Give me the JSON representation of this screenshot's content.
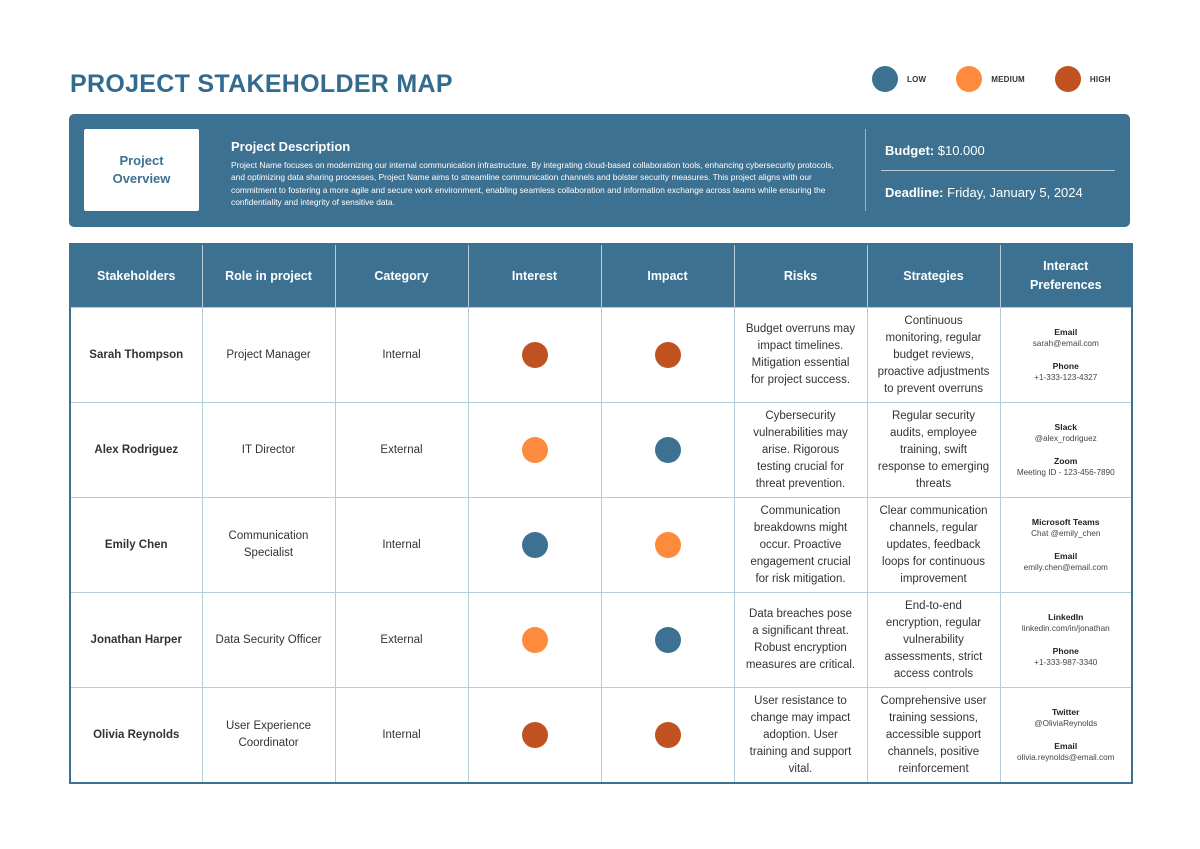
{
  "page": {
    "title": "PROJECT STAKEHOLDER MAP"
  },
  "legend": [
    {
      "label": "LOW",
      "level": "low",
      "color": "#3d7191"
    },
    {
      "label": "MEDIUM",
      "level": "medium",
      "color": "#fe8a3d"
    },
    {
      "label": "HIGH",
      "level": "high",
      "color": "#bf5220"
    }
  ],
  "overview": {
    "box_label": "Project Overview",
    "description_title": "Project Description",
    "description_text": "Project Name focuses on modernizing our internal communication infrastructure. By integrating cloud-based collaboration tools, enhancing cybersecurity protocols, and optimizing data sharing processes, Project Name aims to streamline communication channels and bolster security measures. This project aligns with our commitment to fostering a more agile and secure work environment, enabling seamless collaboration and information exchange across teams while ensuring the confidentiality and integrity of sensitive data.",
    "budget_label": "Budget:",
    "budget_value": "$10.000",
    "deadline_label": "Deadline:",
    "deadline_value": "Friday, January 5, 2024"
  },
  "table": {
    "headers": [
      "Stakeholders",
      "Role in project",
      "Category",
      "Interest",
      "Impact",
      "Risks",
      "Strategies",
      "Interact Preferences"
    ],
    "rows": [
      {
        "name": "Sarah Thompson",
        "role": "Project Manager",
        "category": "Internal",
        "interest": "high",
        "impact": "high",
        "risks": "Budget overruns may impact timelines. Mitigation essential for project success.",
        "strategies": "Continuous monitoring, regular budget reviews, proactive adjustments to prevent overruns",
        "pref1_title": "Email",
        "pref1_value": "sarah@email.com",
        "pref2_title": "Phone",
        "pref2_value": "+1-333-123-4327"
      },
      {
        "name": "Alex Rodriguez",
        "role": "IT Director",
        "category": "External",
        "interest": "medium",
        "impact": "low",
        "risks": "Cybersecurity vulnerabilities may arise. Rigorous testing crucial for threat prevention.",
        "strategies": "Regular security audits, employee training, swift response to emerging threats",
        "pref1_title": "Slack",
        "pref1_value": "@alex_rodriguez",
        "pref2_title": "Zoom",
        "pref2_value": "Meeting ID - 123-456-7890"
      },
      {
        "name": "Emily Chen",
        "role": "Communication Specialist",
        "category": "Internal",
        "interest": "low",
        "impact": "medium",
        "risks": "Communication breakdowns might occur. Proactive engagement crucial for risk mitigation.",
        "strategies": "Clear communication channels, regular updates, feedback loops for continuous improvement",
        "pref1_title": "Microsoft Teams",
        "pref1_value": "Chat @emily_chen",
        "pref2_title": "Email",
        "pref2_value": "emily.chen@email.com"
      },
      {
        "name": "Jonathan Harper",
        "role": "Data Security Officer",
        "category": "External",
        "interest": "medium",
        "impact": "low",
        "risks": "Data breaches pose a significant threat. Robust encryption measures are critical.",
        "strategies": "End-to-end encryption, regular vulnerability assessments, strict access controls",
        "pref1_title": "LinkedIn",
        "pref1_value": "linkedin.com/in/jonathan",
        "pref2_title": "Phone",
        "pref2_value": "+1-333-987-3340"
      },
      {
        "name": "Olivia Reynolds",
        "role": "User Experience Coordinator",
        "category": "Internal",
        "interest": "high",
        "impact": "high",
        "risks": "User resistance to change may impact adoption. User training and support vital.",
        "strategies": "Comprehensive user training sessions, accessible support channels, positive reinforcement",
        "pref1_title": "Twitter",
        "pref1_value": "@OliviaReynolds",
        "pref2_title": "Email",
        "pref2_value": "olivia.reynolds@email.com"
      }
    ]
  }
}
